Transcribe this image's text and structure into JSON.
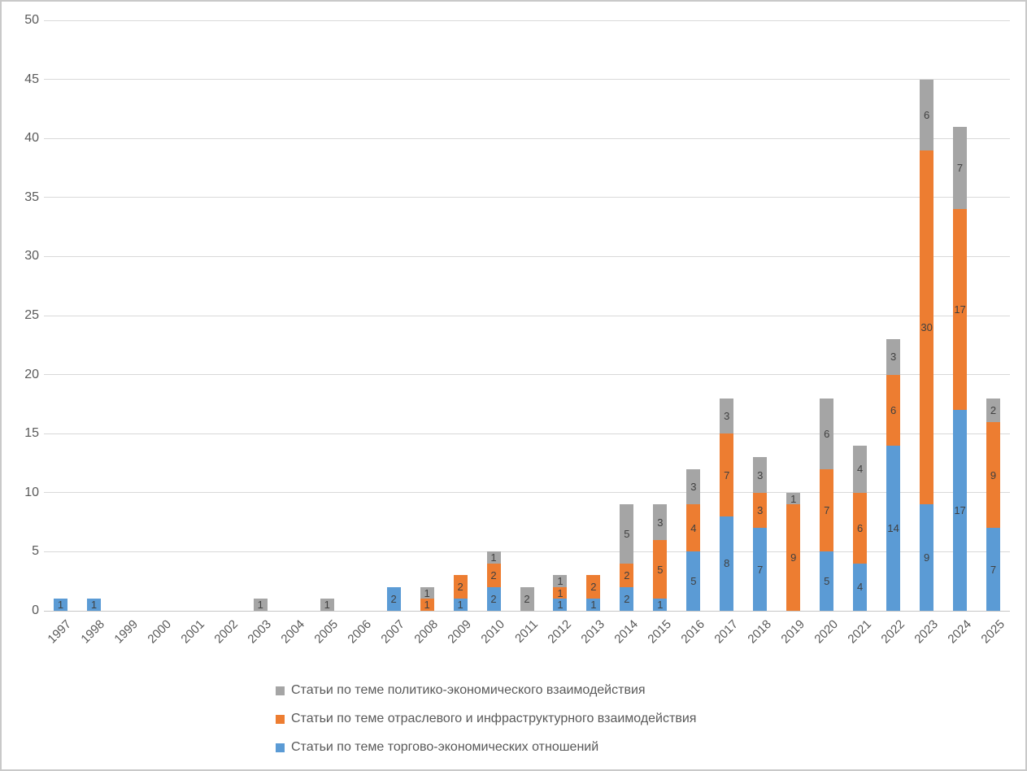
{
  "chart_data": {
    "type": "bar",
    "stacked": true,
    "title": "",
    "categories": [
      "1997",
      "1998",
      "1999",
      "2000",
      "2001",
      "2002",
      "2003",
      "2004",
      "2005",
      "2006",
      "2007",
      "2008",
      "2009",
      "2010",
      "2011",
      "2012",
      "2013",
      "2014",
      "2015",
      "2016",
      "2017",
      "2018",
      "2019",
      "2020",
      "2021",
      "2022",
      "2023",
      "2024",
      "2025"
    ],
    "series": [
      {
        "name": "Статьи по теме торгово-экономических отношений",
        "color": "#5B9BD5",
        "values": [
          1,
          1,
          0,
          0,
          0,
          0,
          0,
          0,
          0,
          0,
          2,
          0,
          1,
          2,
          0,
          1,
          1,
          2,
          1,
          5,
          8,
          7,
          0,
          5,
          4,
          14,
          9,
          17,
          7
        ]
      },
      {
        "name": "Статьи по теме отраслевого и инфраструктурного взаимодействия",
        "color": "#ED7D31",
        "values": [
          0,
          0,
          0,
          0,
          0,
          0,
          0,
          0,
          0,
          0,
          0,
          1,
          2,
          2,
          0,
          1,
          2,
          2,
          5,
          4,
          7,
          3,
          9,
          7,
          6,
          6,
          30,
          17,
          9
        ]
      },
      {
        "name": "Статьи по теме политико-экономического взаимодействия",
        "color": "#A5A5A5",
        "values": [
          0,
          0,
          0,
          0,
          0,
          0,
          1,
          0,
          1,
          0,
          0,
          1,
          0,
          1,
          2,
          1,
          0,
          5,
          3,
          3,
          3,
          3,
          1,
          6,
          4,
          3,
          6,
          7,
          2
        ]
      }
    ],
    "legend": {
      "position": "bottom-left",
      "order_top_to_bottom": [
        "Статьи по теме политико-экономического взаимодействия",
        "Статьи по теме отраслевого и инфраструктурного взаимодействия",
        "Статьи по теме торгово-экономических отношений"
      ]
    },
    "xlabel": "",
    "ylabel": "",
    "ylim": [
      0,
      50
    ],
    "ytick_step": 5,
    "y_tick_labels": [
      "0",
      "5",
      "10",
      "15",
      "20",
      "25",
      "30",
      "35",
      "40",
      "45",
      "50"
    ],
    "grid": true,
    "colors": {
      "grid": "#D9D9D9",
      "axis_text": "#595959",
      "data_label": "#404040",
      "chart_border": "#C9C9C9",
      "background": "#FFFFFF"
    }
  }
}
